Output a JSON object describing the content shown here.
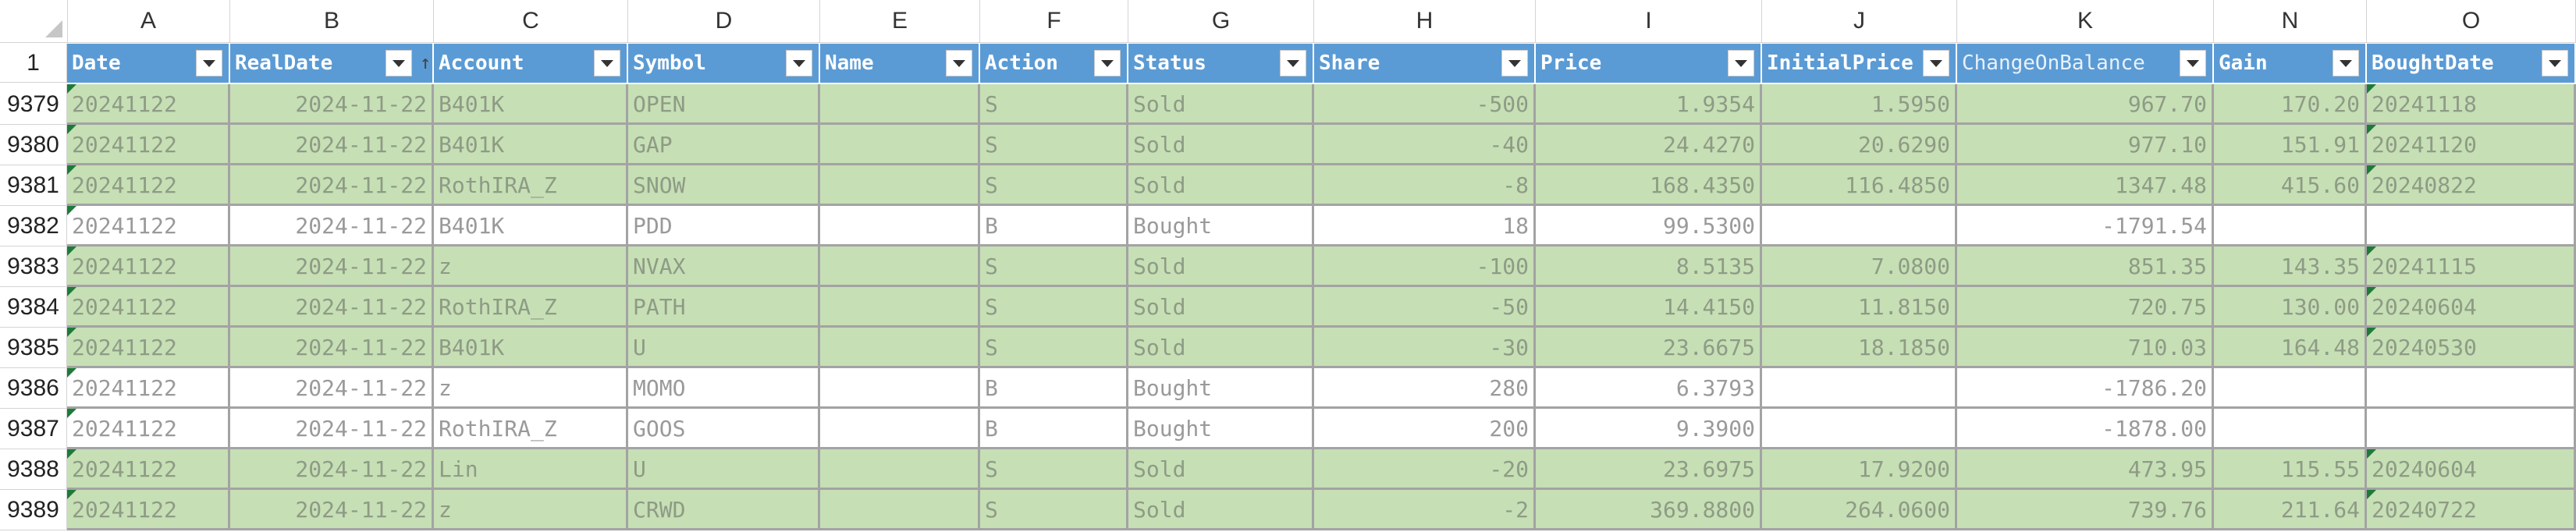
{
  "columns": [
    {
      "letter": "A",
      "header": "Date"
    },
    {
      "letter": "B",
      "header": "RealDate"
    },
    {
      "letter": "C",
      "header": "Account"
    },
    {
      "letter": "D",
      "header": "Symbol"
    },
    {
      "letter": "E",
      "header": "Name"
    },
    {
      "letter": "F",
      "header": "Action"
    },
    {
      "letter": "G",
      "header": "Status"
    },
    {
      "letter": "H",
      "header": "Share"
    },
    {
      "letter": "I",
      "header": "Price"
    },
    {
      "letter": "J",
      "header": "InitialPrice"
    },
    {
      "letter": "K",
      "header": "ChangeOnBalance"
    },
    {
      "letter": "N",
      "header": "Gain"
    },
    {
      "letter": "O",
      "header": "BoughtDate"
    }
  ],
  "header_row_number": "1",
  "rows": [
    {
      "num": "9379",
      "status_type": "sold",
      "cells": [
        "20241122",
        "2024-11-22",
        "B401K",
        "OPEN",
        "",
        "S",
        "Sold",
        "-500",
        "1.9354",
        "1.5950",
        "967.70",
        "170.20",
        "20241118"
      ]
    },
    {
      "num": "9380",
      "status_type": "sold",
      "cells": [
        "20241122",
        "2024-11-22",
        "B401K",
        "GAP",
        "",
        "S",
        "Sold",
        "-40",
        "24.4270",
        "20.6290",
        "977.10",
        "151.91",
        "20241120"
      ]
    },
    {
      "num": "9381",
      "status_type": "sold",
      "cells": [
        "20241122",
        "2024-11-22",
        "RothIRA_Z",
        "SNOW",
        "",
        "S",
        "Sold",
        "-8",
        "168.4350",
        "116.4850",
        "1347.48",
        "415.60",
        "20240822"
      ]
    },
    {
      "num": "9382",
      "status_type": "bought",
      "cells": [
        "20241122",
        "2024-11-22",
        "B401K",
        "PDD",
        "",
        "B",
        "Bought",
        "18",
        "99.5300",
        "",
        "-1791.54",
        "",
        ""
      ]
    },
    {
      "num": "9383",
      "status_type": "sold",
      "cells": [
        "20241122",
        "2024-11-22",
        "z",
        "NVAX",
        "",
        "S",
        "Sold",
        "-100",
        "8.5135",
        "7.0800",
        "851.35",
        "143.35",
        "20241115"
      ]
    },
    {
      "num": "9384",
      "status_type": "sold",
      "cells": [
        "20241122",
        "2024-11-22",
        "RothIRA_Z",
        "PATH",
        "",
        "S",
        "Sold",
        "-50",
        "14.4150",
        "11.8150",
        "720.75",
        "130.00",
        "20240604"
      ]
    },
    {
      "num": "9385",
      "status_type": "sold",
      "cells": [
        "20241122",
        "2024-11-22",
        "B401K",
        "U",
        "",
        "S",
        "Sold",
        "-30",
        "23.6675",
        "18.1850",
        "710.03",
        "164.48",
        "20240530"
      ]
    },
    {
      "num": "9386",
      "status_type": "bought",
      "cells": [
        "20241122",
        "2024-11-22",
        "z",
        "MOMO",
        "",
        "B",
        "Bought",
        "280",
        "6.3793",
        "",
        "-1786.20",
        "",
        ""
      ]
    },
    {
      "num": "9387",
      "status_type": "bought",
      "cells": [
        "20241122",
        "2024-11-22",
        "RothIRA_Z",
        "GOOS",
        "",
        "B",
        "Bought",
        "200",
        "9.3900",
        "",
        "-1878.00",
        "",
        ""
      ]
    },
    {
      "num": "9388",
      "status_type": "sold",
      "cells": [
        "20241122",
        "2024-11-22",
        "Lin",
        "U",
        "",
        "S",
        "Sold",
        "-20",
        "23.6975",
        "17.9200",
        "473.95",
        "115.55",
        "20240604"
      ]
    },
    {
      "num": "9389",
      "status_type": "sold",
      "cells": [
        "20241122",
        "2024-11-22",
        "z",
        "CRWD",
        "",
        "S",
        "Sold",
        "-2",
        "369.8800",
        "264.0600",
        "739.76",
        "211.64",
        "20240722"
      ]
    }
  ],
  "colors": {
    "header_fill": "#5b9bd5",
    "sold_fill": "#c6dfb5",
    "bought_fill": "#ffffff",
    "grid": "#a3a3a3",
    "error_tri": "#1e7a3a"
  },
  "icons": {
    "filter": "dropdown-filter-icon",
    "sort": "sort-ascending-icon"
  }
}
